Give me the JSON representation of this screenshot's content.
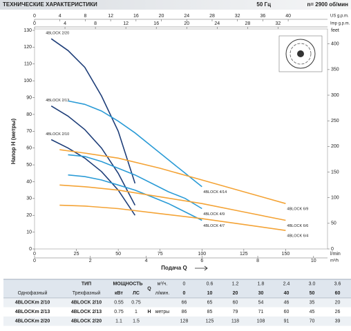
{
  "header": {
    "title": "ТЕХНИЧЕСКИЕ ХАРАКТЕРИСТИКИ",
    "frequency": "50 Гц",
    "speed": "n= 2900 об/мин"
  },
  "chart_data": {
    "type": "line",
    "ylabel": "Напор H (метры)",
    "xlabel": "Подача Q",
    "xlim": [
      0,
      175
    ],
    "xticks": [
      0,
      25,
      50,
      75,
      100,
      125,
      150
    ],
    "xunit": "l/min",
    "ylim": [
      0,
      130
    ],
    "yticks": [
      0,
      10,
      20,
      30,
      40,
      50,
      60,
      70,
      80,
      90,
      100,
      110,
      120,
      130
    ],
    "y2label": "feet",
    "y2lim": [
      0,
      426.5
    ],
    "y2ticks": [
      0,
      50,
      100,
      150,
      200,
      250,
      300,
      350,
      400
    ],
    "extra_x_axes": [
      {
        "name": "US g.p.m.",
        "lim": [
          0,
          46.2
        ],
        "ticks": [
          0,
          4,
          8,
          12,
          16,
          20,
          24,
          28,
          32,
          36,
          40
        ],
        "position": "top"
      },
      {
        "name": "Imp g.p.m.",
        "lim": [
          0,
          38.5
        ],
        "ticks": [
          0,
          4,
          8,
          12,
          16,
          20,
          24,
          28,
          32
        ],
        "position": "top"
      },
      {
        "name": "m³/h",
        "lim": [
          0,
          10.5
        ],
        "ticks": [
          0,
          2,
          4,
          6,
          8,
          10
        ],
        "position": "bottom"
      }
    ],
    "series": [
      {
        "name": "4BLOCK 2/20",
        "color": "#1d3d78",
        "x": [
          10,
          20,
          30,
          40,
          50,
          60
        ],
        "values": [
          125,
          118,
          108,
          91,
          70,
          39
        ]
      },
      {
        "name": "4BLOCK 2/13",
        "color": "#1d3d78",
        "x": [
          10,
          20,
          30,
          40,
          50,
          60
        ],
        "values": [
          85,
          79,
          71,
          60,
          45,
          26
        ]
      },
      {
        "name": "4BLOCK 2/10",
        "color": "#1d3d78",
        "x": [
          10,
          20,
          30,
          40,
          50,
          60
        ],
        "values": [
          65,
          60,
          54,
          46,
          35,
          20
        ]
      },
      {
        "name": "4BLOCK 4/14",
        "color": "#2a9bd6",
        "x": [
          20,
          30,
          40,
          50,
          60,
          70,
          80,
          90,
          100
        ],
        "values": [
          88,
          86,
          82,
          76,
          69,
          61,
          53,
          45,
          37
        ]
      },
      {
        "name": "4BLOCK 4/9",
        "color": "#2a9bd6",
        "x": [
          20,
          30,
          40,
          50,
          60,
          70,
          80,
          90,
          100
        ],
        "values": [
          56,
          55,
          52,
          48,
          44,
          39,
          34,
          30,
          24
        ]
      },
      {
        "name": "4BLOCK 4/7",
        "color": "#2a9bd6",
        "x": [
          20,
          30,
          40,
          50,
          60,
          70,
          80,
          90,
          100
        ],
        "values": [
          44,
          43,
          41,
          38,
          35,
          31,
          27,
          22,
          17
        ]
      },
      {
        "name": "4BLOCK 6/9",
        "color": "#f4a335",
        "x": [
          15,
          30,
          50,
          75,
          100,
          125,
          150
        ],
        "values": [
          59,
          57,
          54,
          48,
          41,
          34,
          27
        ]
      },
      {
        "name": "4BLOCK 6/6",
        "color": "#f4a335",
        "x": [
          15,
          30,
          50,
          75,
          100,
          125,
          150
        ],
        "values": [
          38,
          37,
          35,
          31,
          27,
          22,
          17
        ]
      },
      {
        "name": "4BLOCK 6/4",
        "color": "#f4a335",
        "x": [
          15,
          30,
          50,
          75,
          100,
          125,
          150
        ],
        "values": [
          26,
          25.5,
          24,
          21,
          18,
          14.5,
          11
        ]
      }
    ]
  },
  "table": {
    "type_header": "ТИП",
    "power_header": "МОЩНОСТЬ",
    "q_header": "Q",
    "m3h_unit": "м³/ч.",
    "lpm_unit": "л/мин.",
    "single_phase": "Однофазный",
    "three_phase": "Трехфазный",
    "kw": "кВт",
    "hp": "ЛС",
    "h_header": "H",
    "h_unit": "метры",
    "flow_m3h": [
      0,
      0.6,
      1.2,
      1.8,
      2.4,
      {
        "value": 3,
        "label": "3.0"
      },
      3.6
    ],
    "flow_lpm": [
      0,
      10,
      20,
      30,
      40,
      50,
      60
    ],
    "rows": [
      {
        "single": "4BLOCKm 2/10",
        "three": "4BLOCK 2/10",
        "kw": 0.55,
        "hp": 0.75,
        "head": [
          66,
          65,
          60,
          54,
          46,
          35,
          20
        ]
      },
      {
        "single": "4BLOCKm 2/13",
        "three": "4BLOCK 2/13",
        "kw": 0.75,
        "hp": 1,
        "head": [
          86,
          85,
          79,
          71,
          60,
          45,
          26
        ]
      },
      {
        "single": "4BLOCKm 2/20",
        "three": "4BLOCK 2/20",
        "kw": 1.1,
        "hp": 1.5,
        "head": [
          128,
          125,
          118,
          108,
          91,
          70,
          39
        ]
      }
    ]
  }
}
